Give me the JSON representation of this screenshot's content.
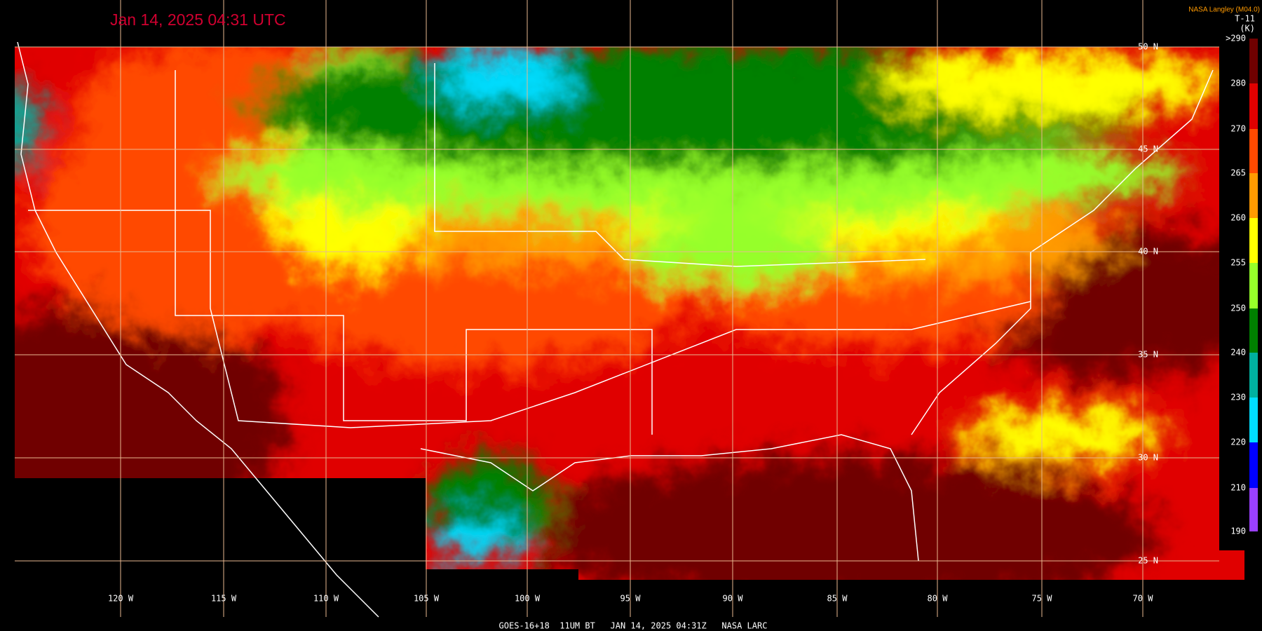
{
  "header": {
    "title": "Jan 14, 2025 04:31 UTC",
    "credit": "NASA Langley (M04.0)"
  },
  "colorbar": {
    "title": "T-11",
    "unit": "(K)",
    "labels": [
      ">290",
      "280",
      "270",
      "265",
      "260",
      "255",
      "250",
      "240",
      "230",
      "220",
      "210",
      "190"
    ],
    "colors": [
      "#700000",
      "#e00000",
      "#ff4a00",
      "#ff9a00",
      "#ffff00",
      "#96ff2a",
      "#008000",
      "#00b0a0",
      "#00ddff",
      "#0000ff",
      "#9a40ff"
    ]
  },
  "grid": {
    "latitudes": [
      "50 N",
      "45 N",
      "40 N",
      "35 N",
      "30 N",
      "25 N"
    ],
    "longitudes": [
      "120 W",
      "115 W",
      "110 W",
      "105 W",
      "100 W",
      "95 W",
      "90 W",
      "85 W",
      "80 W",
      "75 W",
      "70 W"
    ]
  },
  "footer": "GOES-16+18  11UM BT   JAN 14, 2025 04:31Z   NASA LARC"
}
